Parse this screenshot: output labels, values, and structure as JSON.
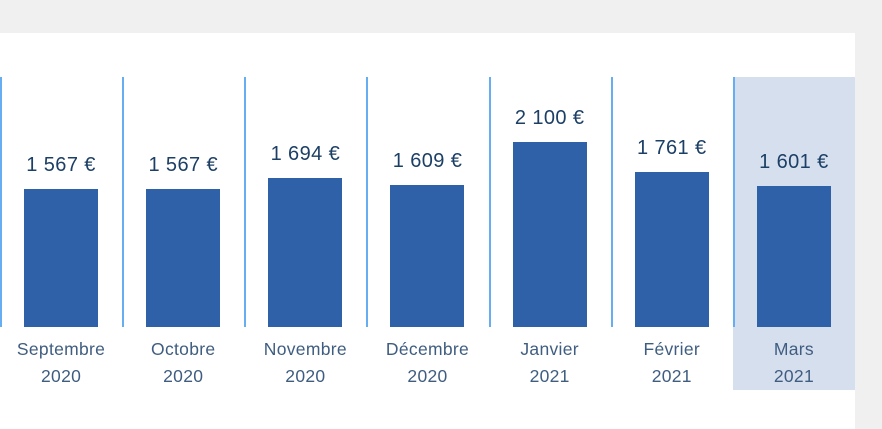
{
  "chart_data": {
    "type": "bar",
    "title": "",
    "xlabel": "",
    "ylabel": "",
    "unit": "€",
    "ylim": [
      0,
      2100
    ],
    "grid": "column-separator-lines",
    "legend": "none",
    "categories": [
      {
        "month": "Septembre",
        "year": "2020"
      },
      {
        "month": "Octobre",
        "year": "2020"
      },
      {
        "month": "Novembre",
        "year": "2020"
      },
      {
        "month": "Décembre",
        "year": "2020"
      },
      {
        "month": "Janvier",
        "year": "2021"
      },
      {
        "month": "Février",
        "year": "2021"
      },
      {
        "month": "Mars",
        "year": "2021"
      }
    ],
    "values": [
      1567,
      1567,
      1694,
      1609,
      2100,
      1761,
      1601
    ],
    "value_labels": [
      "1 567 €",
      "1 567 €",
      "1 694 €",
      "1 609 €",
      "2 100 €",
      "1 761 €",
      "1 601 €"
    ],
    "highlighted_index": 6,
    "highlighted_category": "Mars 2021",
    "colors": {
      "bar": "#2e61a8",
      "separator_line": "#66adf2",
      "highlight_background": "#d6dfee",
      "value_text": "#1c3f66",
      "axis_text": "#3f5d80",
      "page_background": "#f0f0f1",
      "panel_background": "#ffffff"
    }
  }
}
